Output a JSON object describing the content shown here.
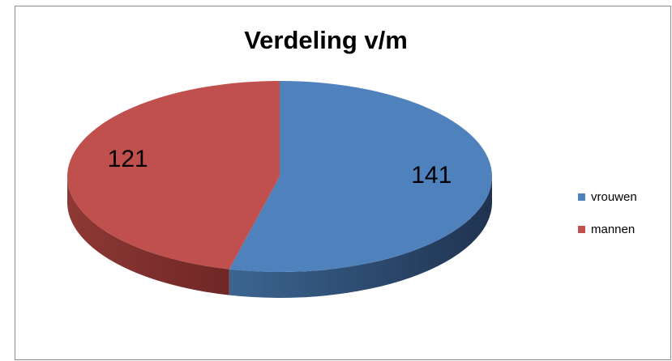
{
  "chart_data": {
    "type": "pie",
    "title": "Verdeling v/m",
    "categories": [
      "vrouwen",
      "mannen"
    ],
    "values": [
      141,
      121
    ],
    "colors": [
      "#4f81bd",
      "#c0504d"
    ],
    "legend": "right"
  }
}
